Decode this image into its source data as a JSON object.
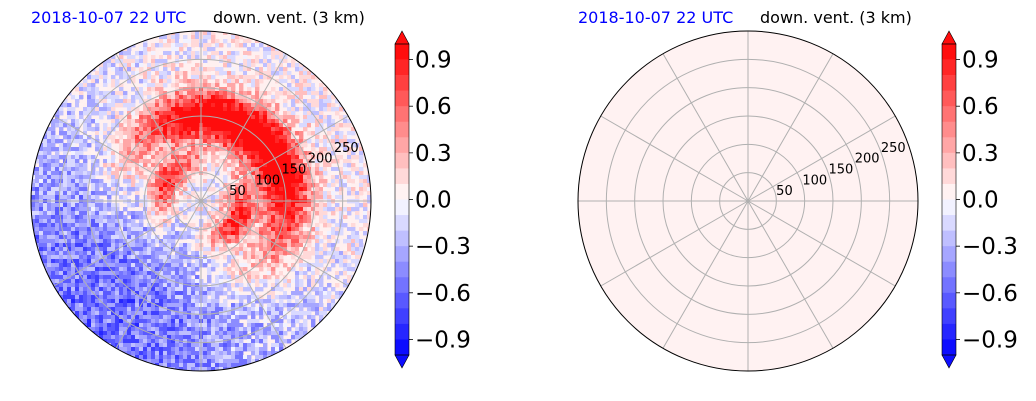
{
  "panels": [
    {
      "id": "left",
      "time_label": "2018-10-07 22 UTC",
      "variable_label": "down. vent. (3 km)",
      "field": "structured"
    },
    {
      "id": "right",
      "time_label": "2018-10-07 22 UTC",
      "variable_label": "down. vent. (3 km)",
      "field": "uniform"
    }
  ],
  "colors": {
    "time_label": "#0000ff",
    "positive": "#ff0000",
    "negative": "#0000ff",
    "near_zero": "#fff0f0",
    "grid": "#b0b0b0"
  },
  "chart_data": [
    {
      "type": "heatmap",
      "projection": "polar",
      "title_left": "2018-10-07 22 UTC",
      "title_right": "down. vent. (3 km)",
      "radial_ticks": [
        50,
        100,
        150,
        200,
        250
      ],
      "radial_max": 300,
      "angular_grid_deg": [
        0,
        30,
        60,
        90,
        120,
        150,
        180,
        210,
        240,
        270,
        300,
        330
      ],
      "colorbar": {
        "ticks": [
          0.9,
          0.6,
          0.3,
          0.0,
          -0.3,
          -0.6,
          -0.9
        ],
        "tick_labels": [
          "0.9",
          "0.6",
          "0.3",
          "0.0",
          "−0.3",
          "−0.6",
          "−0.9"
        ],
        "vmin": -1.0,
        "vmax": 1.0,
        "levels": 20,
        "extend": "both",
        "cmap": "bwr"
      },
      "field_description": "strongly positive downward ventilation ring at ~100-200 km radius on north/east sides; negative scattered values in south-west"
    },
    {
      "type": "heatmap",
      "projection": "polar",
      "title_left": "2018-10-07 22 UTC",
      "title_right": "down. vent. (3 km)",
      "radial_ticks": [
        50,
        100,
        150,
        200,
        250
      ],
      "radial_max": 300,
      "angular_grid_deg": [
        0,
        30,
        60,
        90,
        120,
        150,
        180,
        210,
        240,
        270,
        300,
        330
      ],
      "colorbar": {
        "ticks": [
          0.9,
          0.6,
          0.3,
          0.0,
          -0.3,
          -0.6,
          -0.9
        ],
        "tick_labels": [
          "0.9",
          "0.6",
          "0.3",
          "0.0",
          "−0.3",
          "−0.6",
          "−0.9"
        ],
        "vmin": -1.0,
        "vmax": 1.0,
        "levels": 20,
        "extend": "both",
        "cmap": "bwr"
      },
      "field_value": 0.0
    }
  ]
}
